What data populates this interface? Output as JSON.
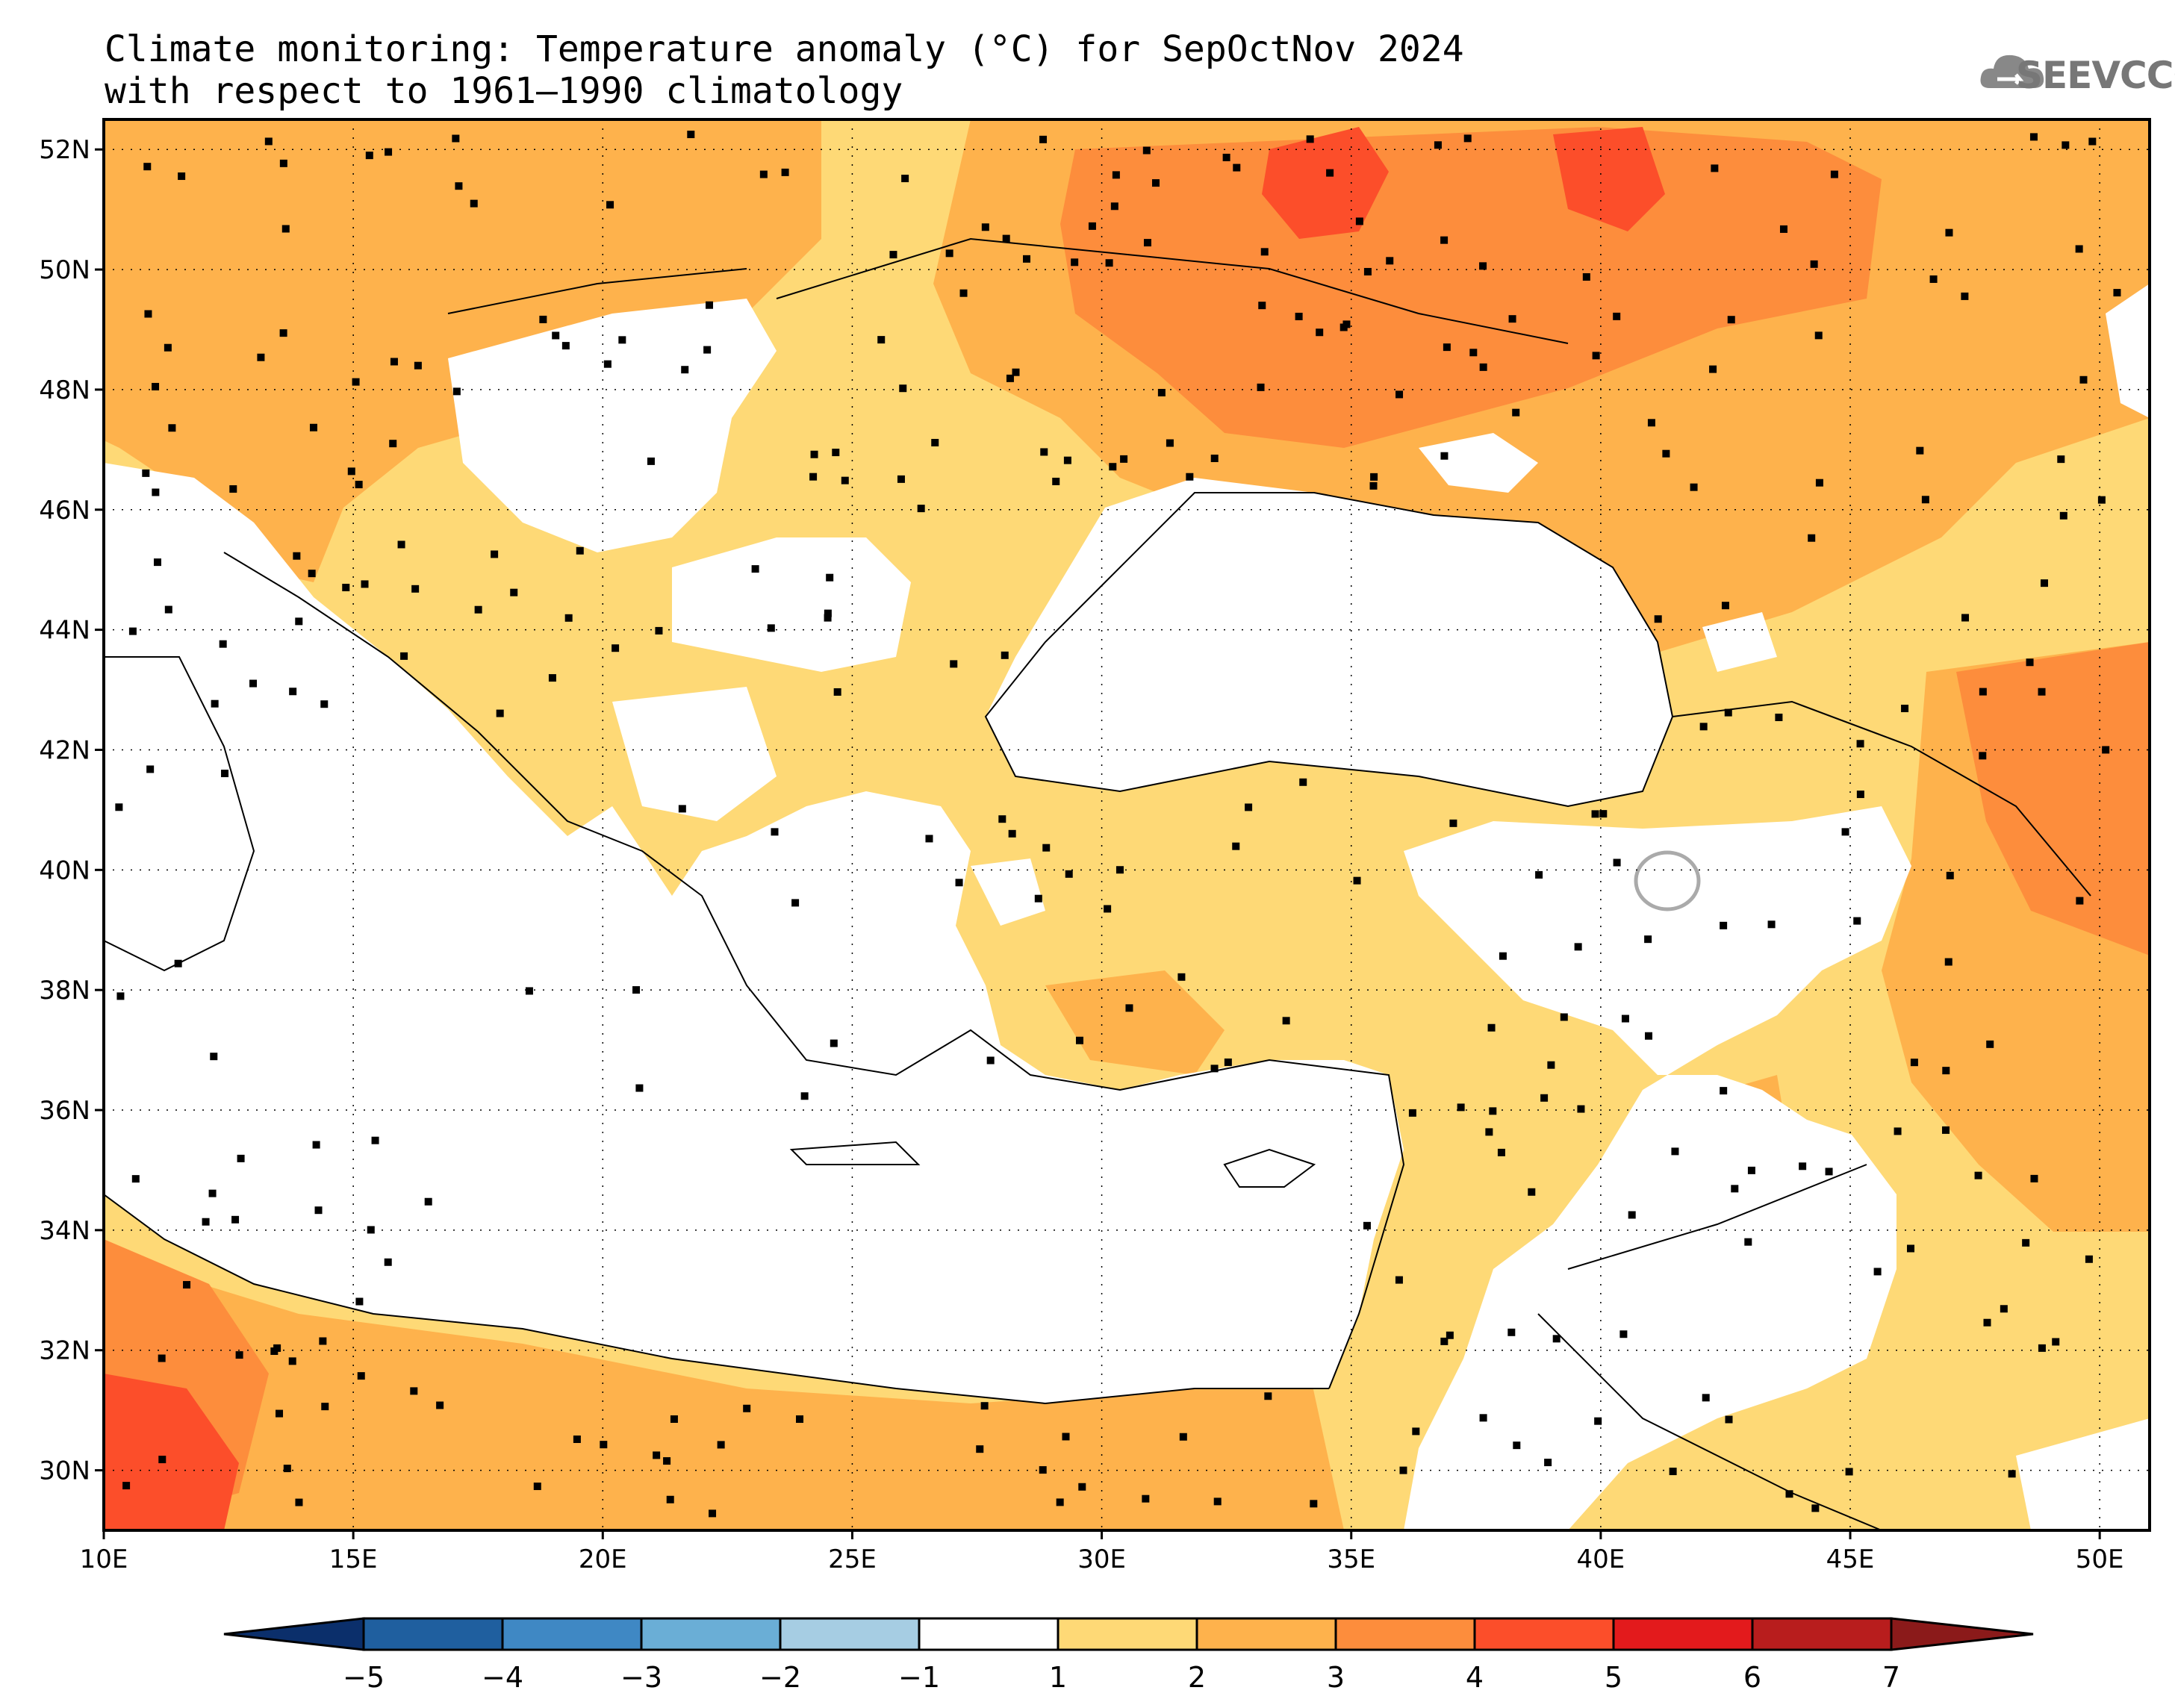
{
  "title": {
    "line1": "Climate monitoring: Temperature anomaly (°C) for SepOctNov 2024",
    "line2": "with respect to 1961–1990 climatology"
  },
  "logo": {
    "text": "SEEVCCC",
    "icon": "cloud-icon"
  },
  "map": {
    "lon_range": [
      10,
      51
    ],
    "lat_range": [
      29,
      52.5
    ],
    "lat_ticks": [
      "52N",
      "50N",
      "48N",
      "46N",
      "44N",
      "42N",
      "40N",
      "38N",
      "36N",
      "34N",
      "32N",
      "30N"
    ],
    "lon_ticks": [
      "10E",
      "15E",
      "20E",
      "25E",
      "30E",
      "35E",
      "40E",
      "45E",
      "50E"
    ],
    "gridlines": "dotted"
  },
  "colorbar": {
    "labels": [
      "−5",
      "−4",
      "−3",
      "−2",
      "−1",
      "1",
      "2",
      "3",
      "4",
      "5",
      "6",
      "7"
    ],
    "colors": [
      "#0b2f6b",
      "#1f5f9f",
      "#3f88c4",
      "#6aaed6",
      "#a6cde3",
      "#ffffff",
      "#fed976",
      "#feb24c",
      "#fd8d3c",
      "#fc4e2a",
      "#e31a1c",
      "#b81d1d",
      "#8b1a1a"
    ]
  },
  "colors": {
    "c1_2": "#fed976",
    "c2_3": "#feb24c",
    "c3_4": "#fd8d3c",
    "c4_5": "#fc4e2a",
    "land_border": "#000000",
    "station": "#000000"
  }
}
